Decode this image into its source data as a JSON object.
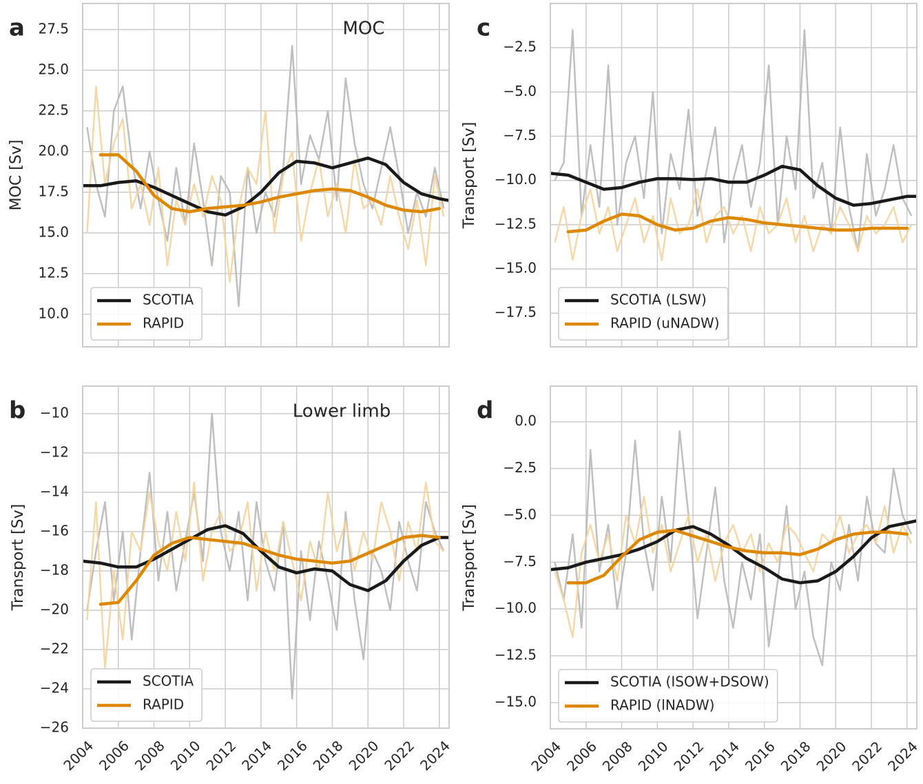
{
  "chart_data": [
    {
      "type": "line",
      "panel_label": "a",
      "title": "MOC",
      "y_label": "MOC [Sv]",
      "grid": true,
      "legend": "lower left",
      "show_xtick_labels": false,
      "xlim": [
        2004,
        2024.55
      ],
      "xticks": [
        2004,
        2006,
        2008,
        2010,
        2012,
        2014,
        2016,
        2018,
        2020,
        2022,
        2024
      ],
      "ylim": [
        8.0,
        29.1
      ],
      "yticks": [
        {
          "value": 10,
          "label": "10.0"
        },
        12.5,
        {
          "value": 15,
          "label": "15.0"
        },
        17.5,
        {
          "value": 20,
          "label": "20.0"
        },
        22.5,
        {
          "value": 25,
          "label": "25.0"
        },
        27.5
      ],
      "x": [
        2004,
        2005,
        2006,
        2007,
        2008,
        2009,
        2010,
        2011,
        2012,
        2013,
        2014,
        2015,
        2016,
        2017,
        2018,
        2019,
        2020,
        2021,
        2022,
        2023,
        2024,
        2024.5
      ],
      "raw_x": [
        2004.25,
        2004.75,
        2005.25,
        2005.75,
        2006.25,
        2006.75,
        2007.25,
        2007.75,
        2008.25,
        2008.75,
        2009.25,
        2009.75,
        2010.25,
        2010.75,
        2011.25,
        2011.75,
        2012.25,
        2012.75,
        2013.25,
        2013.75,
        2014.25,
        2014.75,
        2015.25,
        2015.75,
        2016.25,
        2016.75,
        2017.25,
        2017.75,
        2018.25,
        2018.75,
        2019.25,
        2019.75,
        2020.25,
        2020.75,
        2021.25,
        2021.75,
        2022.25,
        2022.75,
        2023.25,
        2023.75,
        2024.25
      ],
      "series": [
        {
          "name": "SCOTIA",
          "color": "#1a1a1a",
          "raw_color": "#b8b8b8",
          "values": [
            17.9,
            17.9,
            18.1,
            18.2,
            17.8,
            17.3,
            16.8,
            16.3,
            16.1,
            16.6,
            17.5,
            18.7,
            19.4,
            19.3,
            19.0,
            19.3,
            19.6,
            19.2,
            18.1,
            17.4,
            17.1,
            17.0
          ],
          "raw_values": [
            21.5,
            18.0,
            16.0,
            22.5,
            24.0,
            19.5,
            16.5,
            20.0,
            17.0,
            14.5,
            19.0,
            15.5,
            20.5,
            17.0,
            13.0,
            18.5,
            17.5,
            10.5,
            19.0,
            15.0,
            17.5,
            16.0,
            19.0,
            26.5,
            18.0,
            21.0,
            19.5,
            22.5,
            17.0,
            24.5,
            20.5,
            18.0,
            16.5,
            19.0,
            21.5,
            18.5,
            15.0,
            17.5,
            16.0,
            19.0,
            16.5
          ]
        },
        {
          "name": "RAPID",
          "color": "#dd8800",
          "raw_color": "#f3d49e",
          "values": [
            null,
            19.8,
            19.8,
            18.8,
            17.3,
            16.5,
            16.3,
            16.5,
            16.6,
            16.7,
            16.9,
            17.2,
            17.4,
            17.6,
            17.7,
            17.6,
            17.2,
            16.7,
            16.4,
            16.3,
            16.5,
            null
          ],
          "raw_values": [
            15.0,
            24.0,
            18.0,
            20.5,
            22.0,
            16.5,
            18.0,
            15.5,
            19.0,
            13.0,
            17.0,
            15.5,
            18.0,
            16.0,
            18.5,
            17.0,
            12.0,
            16.5,
            19.0,
            18.0,
            22.5,
            15.0,
            18.5,
            20.0,
            14.5,
            17.5,
            19.5,
            16.0,
            18.0,
            15.0,
            19.5,
            16.5,
            17.0,
            15.5,
            18.5,
            16.0,
            14.0,
            17.0,
            13.0,
            18.5,
            16.0
          ]
        }
      ]
    },
    {
      "type": "line",
      "panel_label": "c",
      "y_label": "Transport [Sv]",
      "grid": true,
      "legend": "lower left",
      "show_xtick_labels": false,
      "xlim": [
        2004,
        2024.55
      ],
      "xticks": [
        2004,
        2006,
        2008,
        2010,
        2012,
        2014,
        2016,
        2018,
        2020,
        2022,
        2024
      ],
      "ylim": [
        -19.4,
        0.0
      ],
      "yticks": [
        {
          "value": -17.5,
          "label": "−17.5"
        },
        {
          "value": -15,
          "label": "−15.0"
        },
        {
          "value": -12.5,
          "label": "−12.5"
        },
        {
          "value": -10,
          "label": "−10.0"
        },
        {
          "value": -7.5,
          "label": "−7.5"
        },
        {
          "value": -5,
          "label": "−5.0"
        },
        {
          "value": -2.5,
          "label": "−2.5"
        }
      ],
      "x": [
        2004,
        2005,
        2006,
        2007,
        2008,
        2009,
        2010,
        2011,
        2012,
        2013,
        2014,
        2015,
        2016,
        2017,
        2018,
        2019,
        2020,
        2021,
        2022,
        2023,
        2024,
        2024.5
      ],
      "raw_x": [
        2004.25,
        2004.75,
        2005.25,
        2005.75,
        2006.25,
        2006.75,
        2007.25,
        2007.75,
        2008.25,
        2008.75,
        2009.25,
        2009.75,
        2010.25,
        2010.75,
        2011.25,
        2011.75,
        2012.25,
        2012.75,
        2013.25,
        2013.75,
        2014.25,
        2014.75,
        2015.25,
        2015.75,
        2016.25,
        2016.75,
        2017.25,
        2017.75,
        2018.25,
        2018.75,
        2019.25,
        2019.75,
        2020.25,
        2020.75,
        2021.25,
        2021.75,
        2022.25,
        2022.75,
        2023.25,
        2023.75,
        2024.25
      ],
      "series": [
        {
          "name": "SCOTIA (LSW)",
          "color": "#1a1a1a",
          "raw_color": "#b8b8b8",
          "values": [
            -9.6,
            -9.7,
            -10.1,
            -10.5,
            -10.4,
            -10.1,
            -9.9,
            -9.9,
            -9.95,
            -9.9,
            -10.1,
            -10.1,
            -9.7,
            -9.2,
            -9.4,
            -10.3,
            -11.0,
            -11.4,
            -11.3,
            -11.1,
            -10.9,
            -10.9
          ],
          "raw_values": [
            -10.0,
            -9.0,
            -1.5,
            -12.0,
            -8.0,
            -11.5,
            -3.5,
            -12.5,
            -9.0,
            -7.5,
            -11.0,
            -5.0,
            -13.0,
            -8.5,
            -10.5,
            -6.0,
            -12.0,
            -9.5,
            -7.0,
            -13.5,
            -10.0,
            -8.0,
            -11.5,
            -9.0,
            -3.5,
            -12.5,
            -7.5,
            -10.5,
            -1.5,
            -11.0,
            -9.0,
            -13.0,
            -7.0,
            -11.5,
            -14.0,
            -8.5,
            -12.0,
            -10.5,
            -8.0,
            -11.0,
            -12.0
          ]
        },
        {
          "name": "RAPID (uNADW)",
          "color": "#dd8800",
          "raw_color": "#f3d49e",
          "values": [
            null,
            -12.9,
            -12.8,
            -12.3,
            -11.9,
            -12.0,
            -12.5,
            -12.8,
            -12.7,
            -12.3,
            -12.1,
            -12.2,
            -12.4,
            -12.5,
            -12.6,
            -12.7,
            -12.8,
            -12.8,
            -12.7,
            -12.7,
            -12.7,
            null
          ],
          "raw_values": [
            -13.5,
            -11.5,
            -14.5,
            -12.0,
            -10.5,
            -13.0,
            -11.5,
            -14.0,
            -12.5,
            -11.0,
            -13.5,
            -12.0,
            -14.5,
            -11.0,
            -13.0,
            -12.5,
            -10.5,
            -13.5,
            -12.0,
            -11.5,
            -13.0,
            -12.0,
            -14.0,
            -11.5,
            -13.0,
            -12.5,
            -11.0,
            -13.5,
            -12.0,
            -14.0,
            -12.5,
            -13.0,
            -11.5,
            -12.5,
            -14.0,
            -12.0,
            -13.0,
            -12.5,
            -11.5,
            -13.5,
            -12.5
          ]
        }
      ]
    },
    {
      "type": "line",
      "panel_label": "b",
      "title": "Lower limb",
      "y_label": "Transport [Sv]",
      "grid": true,
      "legend": "lower left",
      "show_xtick_labels": true,
      "xlim": [
        2004,
        2024.55
      ],
      "xticks": [
        2004,
        2006,
        2008,
        2010,
        2012,
        2014,
        2016,
        2018,
        2020,
        2022,
        2024
      ],
      "ylim": [
        -26,
        -8.6
      ],
      "yticks": [
        {
          "value": -26,
          "label": "−26"
        },
        {
          "value": -24,
          "label": "−24"
        },
        {
          "value": -22,
          "label": "−22"
        },
        {
          "value": -20,
          "label": "−20"
        },
        {
          "value": -18,
          "label": "−18"
        },
        {
          "value": -16,
          "label": "−16"
        },
        {
          "value": -14,
          "label": "−14"
        },
        {
          "value": -12,
          "label": "−12"
        },
        {
          "value": -10,
          "label": "−10"
        }
      ],
      "x": [
        2004,
        2005,
        2006,
        2007,
        2008,
        2009,
        2010,
        2011,
        2012,
        2013,
        2014,
        2015,
        2016,
        2017,
        2018,
        2019,
        2020,
        2021,
        2022,
        2023,
        2024,
        2024.5
      ],
      "raw_x": [
        2004.25,
        2004.75,
        2005.25,
        2005.75,
        2006.25,
        2006.75,
        2007.25,
        2007.75,
        2008.25,
        2008.75,
        2009.25,
        2009.75,
        2010.25,
        2010.75,
        2011.25,
        2011.75,
        2012.25,
        2012.75,
        2013.25,
        2013.75,
        2014.25,
        2014.75,
        2015.25,
        2015.75,
        2016.25,
        2016.75,
        2017.25,
        2017.75,
        2018.25,
        2018.75,
        2019.25,
        2019.75,
        2020.25,
        2020.75,
        2021.25,
        2021.75,
        2022.25,
        2022.75,
        2023.25,
        2023.75,
        2024.25
      ],
      "series": [
        {
          "name": "SCOTIA",
          "color": "#1a1a1a",
          "raw_color": "#b8b8b8",
          "values": [
            -17.5,
            -17.6,
            -17.8,
            -17.8,
            -17.4,
            -16.9,
            -16.4,
            -15.9,
            -15.7,
            -16.1,
            -17.0,
            -17.8,
            -18.1,
            -17.9,
            -18.0,
            -18.7,
            -19.0,
            -18.5,
            -17.5,
            -16.7,
            -16.3,
            -16.3
          ],
          "raw_values": [
            -20.0,
            -17.0,
            -14.5,
            -19.5,
            -16.0,
            -21.5,
            -17.0,
            -13.0,
            -18.5,
            -15.0,
            -19.0,
            -16.5,
            -14.0,
            -17.5,
            -10.0,
            -16.0,
            -18.0,
            -15.0,
            -19.5,
            -14.5,
            -17.5,
            -19.0,
            -15.5,
            -24.5,
            -17.0,
            -20.5,
            -16.5,
            -18.5,
            -21.0,
            -15.0,
            -19.5,
            -22.5,
            -17.0,
            -18.0,
            -20.0,
            -15.5,
            -17.5,
            -19.0,
            -14.5,
            -16.0,
            -17.0
          ]
        },
        {
          "name": "RAPID",
          "color": "#dd8800",
          "raw_color": "#f3d49e",
          "values": [
            null,
            -19.7,
            -19.6,
            -18.5,
            -17.2,
            -16.6,
            -16.3,
            -16.4,
            -16.5,
            -16.6,
            -16.9,
            -17.2,
            -17.4,
            -17.5,
            -17.6,
            -17.5,
            -17.1,
            -16.7,
            -16.3,
            -16.2,
            -16.3,
            null
          ],
          "raw_values": [
            -20.5,
            -14.5,
            -23.0,
            -18.0,
            -21.5,
            -16.0,
            -17.0,
            -14.0,
            -16.5,
            -18.0,
            -15.0,
            -17.5,
            -13.5,
            -18.5,
            -16.0,
            -15.0,
            -17.0,
            -16.5,
            -14.5,
            -19.0,
            -16.0,
            -18.0,
            -15.5,
            -17.5,
            -19.5,
            -16.5,
            -18.0,
            -14.0,
            -17.0,
            -15.5,
            -18.0,
            -16.0,
            -17.5,
            -14.5,
            -16.0,
            -18.5,
            -15.5,
            -17.0,
            -13.5,
            -16.5,
            -17.0
          ]
        }
      ]
    },
    {
      "type": "line",
      "panel_label": "d",
      "y_label": "Transport [Sv]",
      "grid": true,
      "legend": "lower left",
      "show_xtick_labels": true,
      "xlim": [
        2004,
        2024.55
      ],
      "xticks": [
        2004,
        2006,
        2008,
        2010,
        2012,
        2014,
        2016,
        2018,
        2020,
        2022,
        2024
      ],
      "ylim": [
        -16.4,
        1.9
      ],
      "yticks": [
        {
          "value": -15,
          "label": "−15.0"
        },
        {
          "value": -12.5,
          "label": "−12.5"
        },
        {
          "value": -10,
          "label": "−10.0"
        },
        {
          "value": -7.5,
          "label": "−7.5"
        },
        {
          "value": -5,
          "label": "−5.0"
        },
        {
          "value": -2.5,
          "label": "−2.5"
        },
        {
          "value": 0,
          "label": "0.0"
        }
      ],
      "x": [
        2004,
        2005,
        2006,
        2007,
        2008,
        2009,
        2010,
        2011,
        2012,
        2013,
        2014,
        2015,
        2016,
        2017,
        2018,
        2019,
        2020,
        2021,
        2022,
        2023,
        2024,
        2024.5
      ],
      "raw_x": [
        2004.25,
        2004.75,
        2005.25,
        2005.75,
        2006.25,
        2006.75,
        2007.25,
        2007.75,
        2008.25,
        2008.75,
        2009.25,
        2009.75,
        2010.25,
        2010.75,
        2011.25,
        2011.75,
        2012.25,
        2012.75,
        2013.25,
        2013.75,
        2014.25,
        2014.75,
        2015.25,
        2015.75,
        2016.25,
        2016.75,
        2017.25,
        2017.75,
        2018.25,
        2018.75,
        2019.25,
        2019.75,
        2020.25,
        2020.75,
        2021.25,
        2021.75,
        2022.25,
        2022.75,
        2023.25,
        2023.75,
        2024.25
      ],
      "series": [
        {
          "name": "SCOTIA (ISOW+DSOW)",
          "color": "#1a1a1a",
          "raw_color": "#b8b8b8",
          "values": [
            -7.9,
            -7.8,
            -7.5,
            -7.3,
            -7.1,
            -6.8,
            -6.4,
            -5.8,
            -5.6,
            -6.0,
            -6.6,
            -7.3,
            -7.8,
            -8.4,
            -8.6,
            -8.5,
            -8.0,
            -7.2,
            -6.2,
            -5.6,
            -5.4,
            -5.3
          ],
          "raw_values": [
            -7.5,
            -9.5,
            -6.0,
            -11.0,
            -1.5,
            -8.0,
            -5.5,
            -10.0,
            -7.0,
            -1.0,
            -6.5,
            -9.0,
            -4.0,
            -7.5,
            -0.5,
            -5.0,
            -10.5,
            -7.0,
            -3.5,
            -8.5,
            -11.0,
            -7.5,
            -9.5,
            -6.0,
            -12.0,
            -8.5,
            -4.5,
            -10.0,
            -8.0,
            -11.5,
            -13.0,
            -7.5,
            -9.0,
            -5.5,
            -8.5,
            -4.0,
            -6.5,
            -7.0,
            -2.5,
            -5.0,
            -6.0
          ]
        },
        {
          "name": "RAPID (lNADW)",
          "color": "#dd8800",
          "raw_color": "#f3d49e",
          "values": [
            null,
            -8.6,
            -8.6,
            -8.2,
            -7.2,
            -6.3,
            -5.9,
            -5.8,
            -6.1,
            -6.4,
            -6.7,
            -6.9,
            -7.0,
            -7.0,
            -7.1,
            -6.8,
            -6.3,
            -6.0,
            -5.9,
            -5.9,
            -6.0,
            null
          ],
          "raw_values": [
            -8.0,
            -9.5,
            -11.5,
            -7.0,
            -5.5,
            -7.5,
            -6.0,
            -8.5,
            -5.0,
            -6.5,
            -4.0,
            -7.0,
            -5.5,
            -8.0,
            -6.5,
            -5.0,
            -7.5,
            -6.0,
            -8.5,
            -6.5,
            -5.5,
            -7.0,
            -6.0,
            -8.0,
            -6.5,
            -7.5,
            -5.5,
            -6.0,
            -7.0,
            -8.0,
            -6.0,
            -6.5,
            -5.0,
            -7.0,
            -6.0,
            -5.5,
            -6.5,
            -4.5,
            -7.0,
            -5.5,
            -6.5
          ]
        }
      ]
    }
  ]
}
